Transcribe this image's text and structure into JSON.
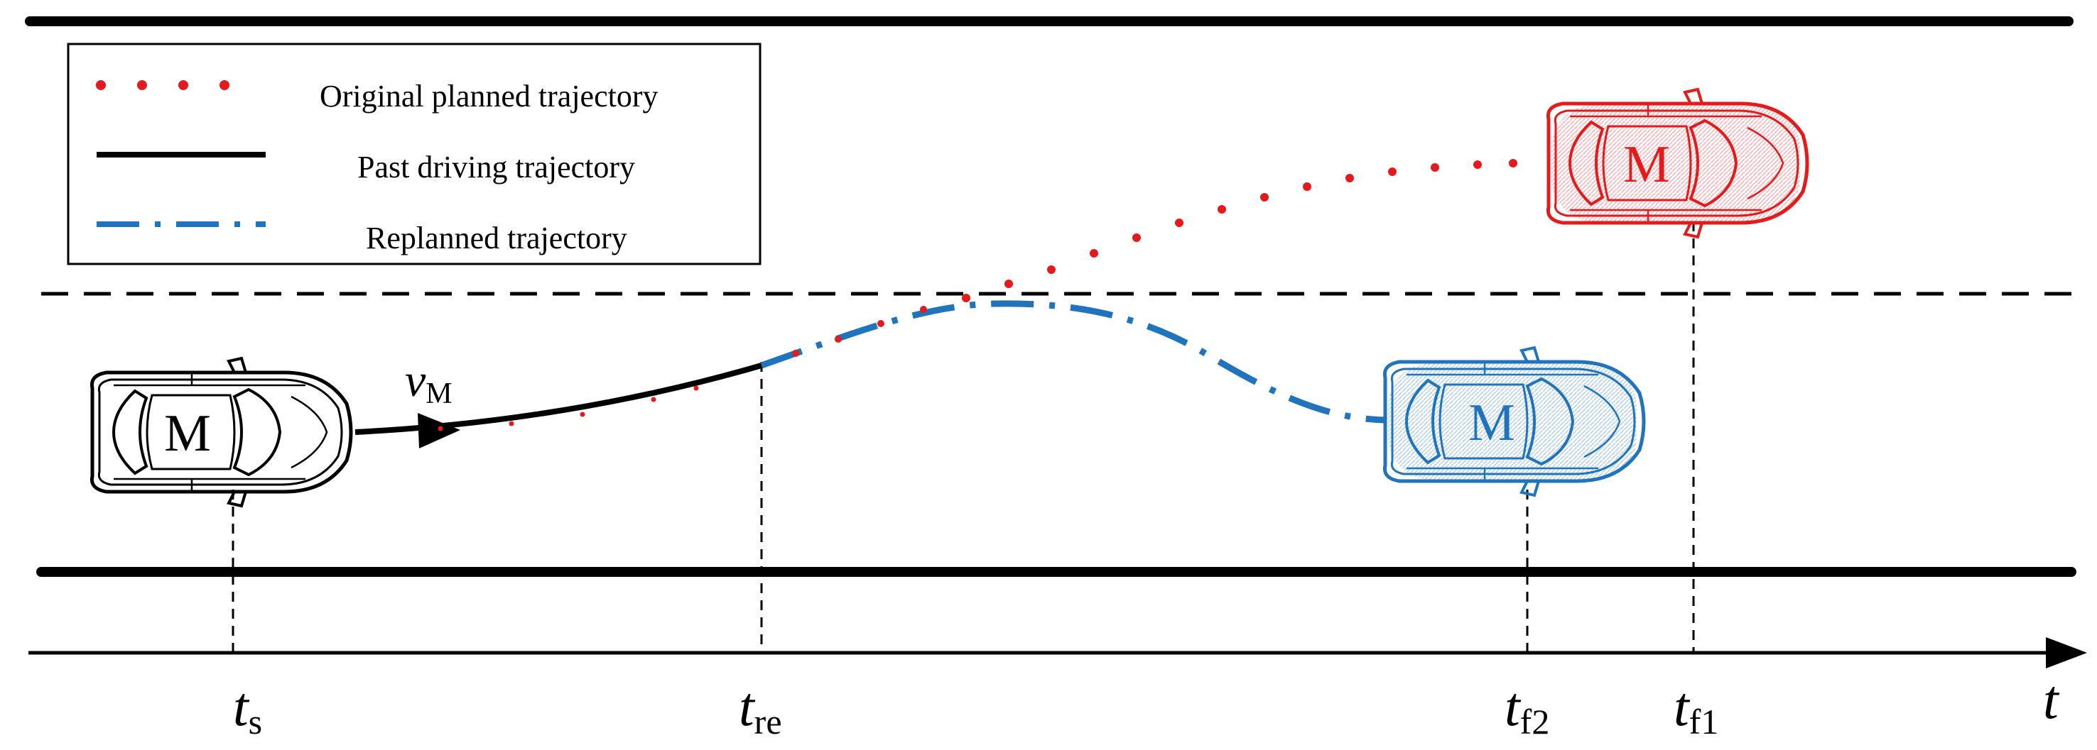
{
  "legend": {
    "items": [
      {
        "label": "Original planned trajectory",
        "color": "#e41a1c",
        "style": "dotted"
      },
      {
        "label": "Past driving trajectory",
        "color": "#000000",
        "style": "solid"
      },
      {
        "label": "Replanned trajectory",
        "color": "#1f74bd",
        "style": "dash-dot"
      }
    ]
  },
  "colors": {
    "original": "#e41a1c",
    "past": "#000000",
    "replanned": "#1f74bd"
  },
  "vehicles": [
    {
      "letter": "M",
      "color": "#000000",
      "state": "start"
    },
    {
      "letter": "M",
      "color": "#1f74bd",
      "state": "replanned-end"
    },
    {
      "letter": "M",
      "color": "#e41a1c",
      "state": "original-end"
    }
  ],
  "velocity_label": {
    "main": "v",
    "sub": "M"
  },
  "time_axis": {
    "label": "t",
    "ticks": [
      {
        "main": "t",
        "sub": "s"
      },
      {
        "main": "t",
        "sub": "re"
      },
      {
        "main": "t",
        "sub": "f2"
      },
      {
        "main": "t",
        "sub": "f1"
      }
    ]
  }
}
